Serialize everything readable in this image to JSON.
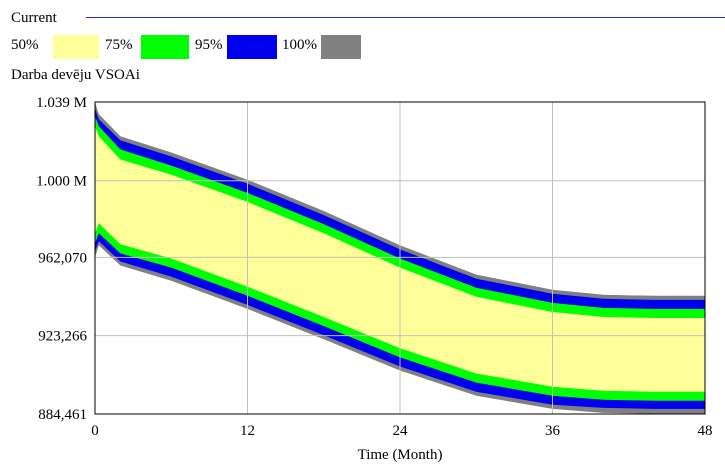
{
  "legend": {
    "title": "Current",
    "items": [
      {
        "label": "50%",
        "color": "#ffff99"
      },
      {
        "label": "75%",
        "color": "#00ff00"
      },
      {
        "label": "95%",
        "color": "#0000ee"
      },
      {
        "label": "100%",
        "color": "#808080"
      }
    ]
  },
  "chart_data": {
    "type": "area",
    "title": "Darba devēju VSOAi",
    "xlabel": "Time (Month)",
    "ylabel": "",
    "xlim": [
      0,
      48
    ],
    "ylim": [
      884461,
      1039000
    ],
    "x_ticks": [
      0,
      12,
      24,
      36,
      48
    ],
    "x_tick_labels": [
      "0",
      "12",
      "24",
      "36",
      "48"
    ],
    "y_ticks": [
      884461,
      923266,
      962070,
      1000000,
      1039000
    ],
    "y_tick_labels": [
      "884,461",
      "923,266",
      "962,070",
      "1.000 M",
      "1.039 M"
    ],
    "grid": true,
    "x": [
      0,
      0.3,
      2,
      6,
      12,
      18,
      24,
      30,
      36,
      40,
      44,
      48
    ],
    "series": [
      {
        "name": "100%",
        "upper": [
          1039000,
          1033000,
          1022000,
          1014000,
          1000500,
          985000,
          968000,
          953500,
          946000,
          943500,
          943000,
          943000
        ],
        "lower": [
          962000,
          968000,
          958000,
          950500,
          936500,
          921500,
          906000,
          893500,
          887000,
          885000,
          884600,
          884500
        ]
      },
      {
        "name": "95%",
        "upper": [
          1036000,
          1030500,
          1020000,
          1012000,
          998500,
          983000,
          966000,
          951500,
          944000,
          941500,
          941000,
          941000
        ],
        "lower": [
          965000,
          970000,
          960000,
          952500,
          938500,
          923500,
          908000,
          895500,
          889000,
          887500,
          887000,
          887000
        ]
      },
      {
        "name": "75%",
        "upper": [
          1032000,
          1027000,
          1015500,
          1007500,
          994000,
          978500,
          961500,
          947000,
          939500,
          937000,
          936500,
          936500
        ],
        "lower": [
          969000,
          974000,
          964000,
          957000,
          943000,
          928000,
          912500,
          900000,
          893500,
          891500,
          891000,
          891000
        ]
      },
      {
        "name": "50%",
        "upper": [
          1027000,
          1022000,
          1010500,
          1003000,
          989500,
          974000,
          957000,
          942500,
          935000,
          932500,
          932000,
          932000
        ],
        "lower": [
          974000,
          979000,
          968500,
          961500,
          947500,
          932500,
          917000,
          904500,
          898000,
          896000,
          895500,
          895500
        ]
      }
    ]
  }
}
